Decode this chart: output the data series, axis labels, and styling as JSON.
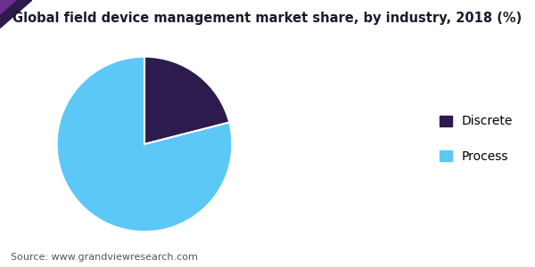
{
  "title": "Global field device management market share, by industry, 2018 (%)",
  "slices": [
    {
      "label": "Discrete",
      "value": 21,
      "color": "#2d1b4e"
    },
    {
      "label": "Process",
      "value": 79,
      "color": "#5bc8f5"
    }
  ],
  "startangle": 90,
  "legend_labels": [
    "Discrete",
    "Process"
  ],
  "source_text": "Source: www.grandviewresearch.com",
  "title_fontsize": 10.5,
  "legend_fontsize": 10,
  "source_fontsize": 8,
  "background_color": "#ffffff",
  "header_bar_color": "#4a1070",
  "title_color": "#1a1a2e",
  "wedge_edge_color": "#ffffff"
}
